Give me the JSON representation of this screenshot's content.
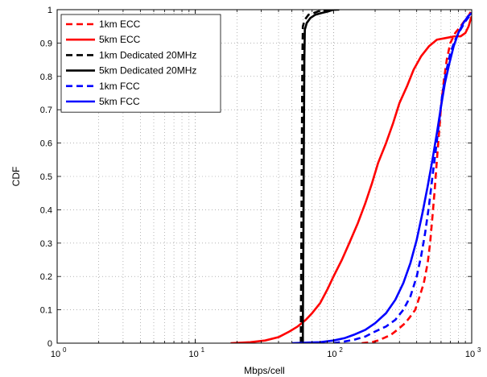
{
  "chart_data": {
    "type": "line",
    "title": "",
    "xlabel": "Mbps/cell",
    "ylabel": "CDF",
    "xscale": "log",
    "xlim": [
      1,
      1000
    ],
    "ylim": [
      0,
      1
    ],
    "grid": true,
    "legend_position": "top-left",
    "x_ticks": [
      {
        "value": 1,
        "base": "10",
        "exp": "0"
      },
      {
        "value": 10,
        "base": "10",
        "exp": "1"
      },
      {
        "value": 100,
        "base": "10",
        "exp": "2"
      },
      {
        "value": 1000,
        "base": "10",
        "exp": "3"
      }
    ],
    "y_ticks": [
      "0",
      "0.1",
      "0.2",
      "0.3",
      "0.4",
      "0.5",
      "0.6",
      "0.7",
      "0.8",
      "0.9",
      "1"
    ],
    "series": [
      {
        "name": "1km ECC",
        "color": "#ff0000",
        "dash": "dashed",
        "points": [
          [
            160,
            0
          ],
          [
            190,
            0.003
          ],
          [
            210,
            0.008
          ],
          [
            230,
            0.015
          ],
          [
            260,
            0.025
          ],
          [
            290,
            0.04
          ],
          [
            330,
            0.06
          ],
          [
            360,
            0.08
          ],
          [
            390,
            0.1
          ],
          [
            420,
            0.14
          ],
          [
            450,
            0.18
          ],
          [
            480,
            0.24
          ],
          [
            500,
            0.3
          ],
          [
            520,
            0.38
          ],
          [
            540,
            0.46
          ],
          [
            560,
            0.55
          ],
          [
            580,
            0.63
          ],
          [
            600,
            0.71
          ],
          [
            630,
            0.79
          ],
          [
            660,
            0.85
          ],
          [
            700,
            0.9
          ],
          [
            760,
            0.93
          ],
          [
            830,
            0.95
          ],
          [
            900,
            0.97
          ],
          [
            960,
            0.985
          ],
          [
            1000,
            1
          ]
        ]
      },
      {
        "name": "5km ECC",
        "color": "#ff0000",
        "dash": "solid",
        "points": [
          [
            18,
            0
          ],
          [
            25,
            0.003
          ],
          [
            32,
            0.008
          ],
          [
            40,
            0.018
          ],
          [
            48,
            0.035
          ],
          [
            55,
            0.05
          ],
          [
            63,
            0.07
          ],
          [
            70,
            0.09
          ],
          [
            80,
            0.12
          ],
          [
            90,
            0.16
          ],
          [
            100,
            0.2
          ],
          [
            115,
            0.25
          ],
          [
            130,
            0.3
          ],
          [
            150,
            0.36
          ],
          [
            170,
            0.42
          ],
          [
            190,
            0.48
          ],
          [
            210,
            0.54
          ],
          [
            240,
            0.6
          ],
          [
            270,
            0.66
          ],
          [
            300,
            0.72
          ],
          [
            340,
            0.77
          ],
          [
            380,
            0.82
          ],
          [
            430,
            0.86
          ],
          [
            490,
            0.89
          ],
          [
            560,
            0.91
          ],
          [
            650,
            0.915
          ],
          [
            750,
            0.92
          ],
          [
            830,
            0.92
          ],
          [
            900,
            0.93
          ],
          [
            950,
            0.95
          ],
          [
            980,
            0.97
          ],
          [
            1000,
            0.98
          ]
        ]
      },
      {
        "name": "1km Dedicated 20MHz",
        "color": "#000000",
        "dash": "dashed",
        "points": [
          [
            58,
            0
          ],
          [
            58,
            0.05
          ],
          [
            58.5,
            0.3
          ],
          [
            59,
            0.6
          ],
          [
            59.5,
            0.85
          ],
          [
            60,
            0.95
          ],
          [
            62,
            0.97
          ],
          [
            66,
            0.985
          ],
          [
            72,
            0.99
          ],
          [
            80,
            0.997
          ],
          [
            95,
            1
          ],
          [
            105,
            1
          ]
        ]
      },
      {
        "name": "5km Dedicated 20MHz",
        "color": "#000000",
        "dash": "solid",
        "points": [
          [
            60,
            0
          ],
          [
            60,
            0.05
          ],
          [
            60.5,
            0.3
          ],
          [
            61,
            0.6
          ],
          [
            61.5,
            0.85
          ],
          [
            62,
            0.94
          ],
          [
            64,
            0.96
          ],
          [
            68,
            0.975
          ],
          [
            74,
            0.985
          ],
          [
            82,
            0.99
          ],
          [
            92,
            0.995
          ],
          [
            100,
            1
          ],
          [
            110,
            1
          ]
        ]
      },
      {
        "name": "1km FCC",
        "color": "#0000ff",
        "dash": "dashed",
        "points": [
          [
            100,
            0
          ],
          [
            120,
            0.005
          ],
          [
            140,
            0.01
          ],
          [
            170,
            0.02
          ],
          [
            200,
            0.035
          ],
          [
            240,
            0.05
          ],
          [
            280,
            0.07
          ],
          [
            320,
            0.1
          ],
          [
            360,
            0.14
          ],
          [
            400,
            0.2
          ],
          [
            430,
            0.26
          ],
          [
            460,
            0.33
          ],
          [
            490,
            0.41
          ],
          [
            520,
            0.5
          ],
          [
            550,
            0.58
          ],
          [
            580,
            0.66
          ],
          [
            610,
            0.74
          ],
          [
            650,
            0.81
          ],
          [
            700,
            0.87
          ],
          [
            760,
            0.91
          ],
          [
            830,
            0.94
          ],
          [
            900,
            0.965
          ],
          [
            960,
            0.98
          ],
          [
            1000,
            0.99
          ]
        ]
      },
      {
        "name": "5km FCC",
        "color": "#0000ff",
        "dash": "solid",
        "points": [
          [
            50,
            0
          ],
          [
            80,
            0.003
          ],
          [
            100,
            0.008
          ],
          [
            120,
            0.015
          ],
          [
            140,
            0.025
          ],
          [
            170,
            0.04
          ],
          [
            200,
            0.06
          ],
          [
            240,
            0.09
          ],
          [
            280,
            0.13
          ],
          [
            320,
            0.18
          ],
          [
            360,
            0.24
          ],
          [
            400,
            0.31
          ],
          [
            440,
            0.39
          ],
          [
            480,
            0.47
          ],
          [
            520,
            0.55
          ],
          [
            560,
            0.63
          ],
          [
            600,
            0.71
          ],
          [
            640,
            0.78
          ],
          [
            690,
            0.84
          ],
          [
            740,
            0.89
          ],
          [
            800,
            0.93
          ],
          [
            870,
            0.96
          ],
          [
            940,
            0.98
          ],
          [
            1000,
            0.99
          ]
        ]
      }
    ]
  }
}
